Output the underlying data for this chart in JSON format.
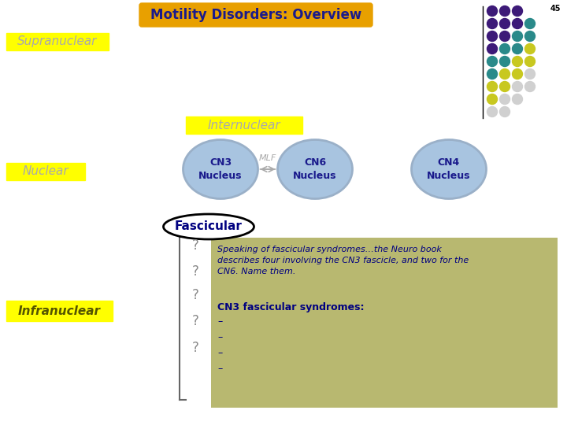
{
  "title": "Motility Disorders: Overview",
  "title_bg": "#E8A000",
  "title_color": "#1a1a8c",
  "slide_number": "45",
  "background_color": "#ffffff",
  "supranuclear_label": "Supranuclear",
  "nuclear_label": "Nuclear",
  "infranuclear_label": "Infranuclear",
  "internuclear_label": "Internuclear",
  "label_bg": "#FFFF00",
  "label_color": "#aaaaaa",
  "cn3_text": "CN3\nNucleus",
  "cn6_text": "CN6\nNucleus",
  "cn4_text": "CN4\nNucleus",
  "mlf_text": "MLF",
  "circle_fill": "#a8c4e0",
  "circle_edge": "#9ab0c8",
  "fascicular_text": "Fascicular",
  "fascicular_color": "#000080",
  "fascicular_bg": "#ffffff",
  "fascicular_border": "#000000",
  "info_box_bg": "#b8b870",
  "info_box_text1": "Speaking of fascicular syndromes…the Neuro book\ndescribes four involving the CN3 fascicle, and two for the\nCN6. Name them.",
  "info_box_text2": "CN3 fascicular syndromes:",
  "info_text_color": "#000080",
  "question_marks": [
    "?",
    "?",
    "?",
    "?",
    "?"
  ],
  "dot_rows": [
    [
      "#3d1a78",
      "#3d1a78",
      "#3d1a78"
    ],
    [
      "#3d1a78",
      "#3d1a78",
      "#3d1a78",
      "#2a8a8a"
    ],
    [
      "#3d1a78",
      "#3d1a78",
      "#2a8a8a",
      "#2a8a8a"
    ],
    [
      "#3d1a78",
      "#2a8a8a",
      "#2a8a8a",
      "#c8c820"
    ],
    [
      "#2a8a8a",
      "#2a8a8a",
      "#c8c820",
      "#c8c820"
    ],
    [
      "#2a8a8a",
      "#c8c820",
      "#c8c820",
      "#d0d0d0"
    ],
    [
      "#c8c820",
      "#c8c820",
      "#d0d0d0",
      "#d0d0d0"
    ],
    [
      "#c8c820",
      "#d0d0d0",
      "#d0d0d0"
    ],
    [
      "#d0d0d0",
      "#d0d0d0"
    ]
  ]
}
